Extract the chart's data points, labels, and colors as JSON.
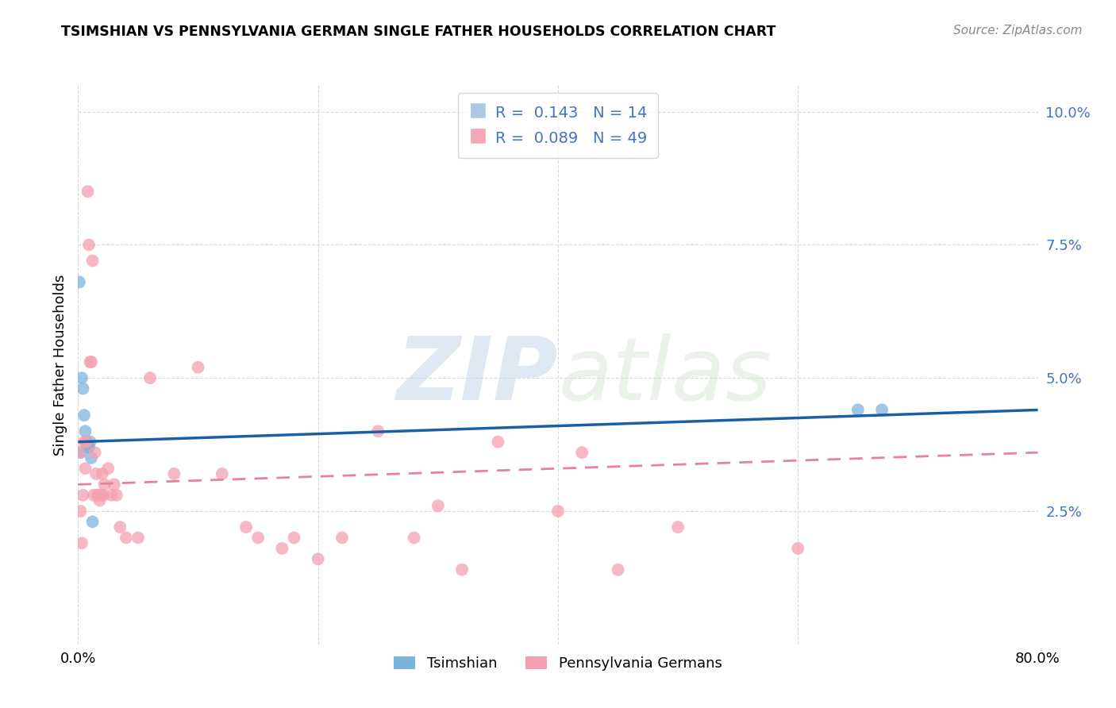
{
  "title": "TSIMSHIAN VS PENNSYLVANIA GERMAN SINGLE FATHER HOUSEHOLDS CORRELATION CHART",
  "source": "Source: ZipAtlas.com",
  "ylabel": "Single Father Households",
  "legend": {
    "tsimshian": {
      "R": 0.143,
      "N": 14,
      "color": "#aec6e8"
    },
    "pa_german": {
      "R": 0.089,
      "N": 49,
      "color": "#f4a7b5"
    }
  },
  "tsimshian_x": [
    0.001,
    0.002,
    0.003,
    0.004,
    0.005,
    0.006,
    0.007,
    0.008,
    0.009,
    0.01,
    0.011,
    0.012,
    0.65,
    0.67
  ],
  "tsimshian_y": [
    0.068,
    0.036,
    0.05,
    0.048,
    0.043,
    0.04,
    0.038,
    0.037,
    0.037,
    0.038,
    0.035,
    0.023,
    0.044,
    0.044
  ],
  "pa_german_x": [
    0.001,
    0.002,
    0.003,
    0.004,
    0.005,
    0.006,
    0.007,
    0.008,
    0.009,
    0.01,
    0.011,
    0.012,
    0.013,
    0.014,
    0.015,
    0.016,
    0.017,
    0.018,
    0.019,
    0.02,
    0.021,
    0.022,
    0.025,
    0.028,
    0.03,
    0.032,
    0.035,
    0.04,
    0.05,
    0.06,
    0.08,
    0.1,
    0.12,
    0.14,
    0.15,
    0.17,
    0.18,
    0.2,
    0.22,
    0.25,
    0.28,
    0.3,
    0.32,
    0.35,
    0.4,
    0.42,
    0.45,
    0.5,
    0.6
  ],
  "pa_german_y": [
    0.036,
    0.025,
    0.019,
    0.028,
    0.038,
    0.033,
    0.038,
    0.085,
    0.075,
    0.053,
    0.053,
    0.072,
    0.028,
    0.036,
    0.032,
    0.028,
    0.028,
    0.027,
    0.028,
    0.032,
    0.028,
    0.03,
    0.033,
    0.028,
    0.03,
    0.028,
    0.022,
    0.02,
    0.02,
    0.05,
    0.032,
    0.052,
    0.032,
    0.022,
    0.02,
    0.018,
    0.02,
    0.016,
    0.02,
    0.04,
    0.02,
    0.026,
    0.014,
    0.038,
    0.025,
    0.036,
    0.014,
    0.022,
    0.018
  ],
  "ylim": [
    0.0,
    0.105
  ],
  "xlim": [
    0.0,
    0.8
  ],
  "yticks": [
    0.025,
    0.05,
    0.075,
    0.1
  ],
  "ytick_labels": [
    "2.5%",
    "5.0%",
    "7.5%",
    "10.0%"
  ],
  "xticks": [
    0.0,
    0.2,
    0.4,
    0.6,
    0.8
  ],
  "xtick_labels": [
    "0.0%",
    "",
    "",
    "",
    "80.0%"
  ],
  "bg_color": "#ffffff",
  "grid_color": "#d8d8d8",
  "tsimshian_scatter_color": "#7cb4e0",
  "tsimshian_line_color": "#1a5fa6",
  "pa_german_scatter_color": "#f4a0b0",
  "pa_german_line_color": "#e8829a"
}
